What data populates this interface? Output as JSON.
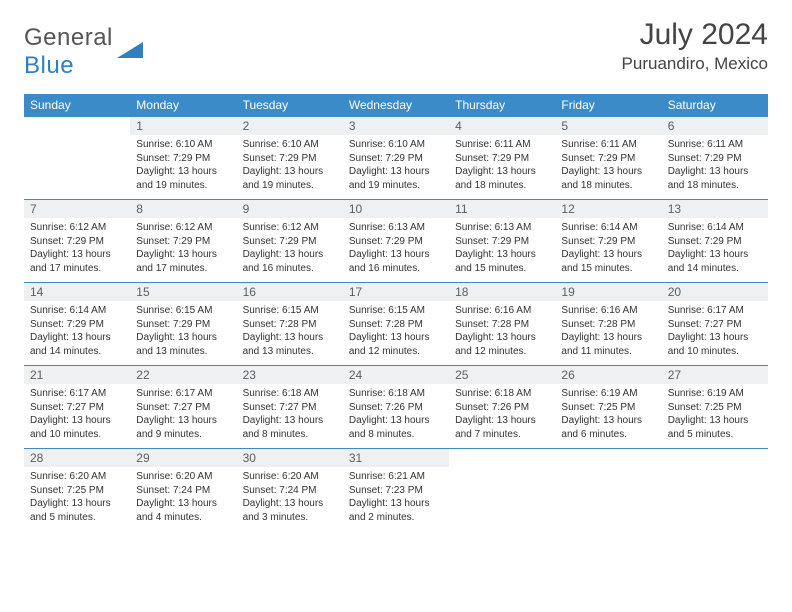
{
  "logo": {
    "general": "General",
    "blue": "Blue"
  },
  "title": "July 2024",
  "location": "Puruandiro, Mexico",
  "colors": {
    "header_bg": "#3b8bc9",
    "header_text": "#ffffff",
    "daynum_bg": "#eef0f2",
    "daynum_text": "#5b6066",
    "rule": "#3b8bc9",
    "logo_blue": "#2f7fc1"
  },
  "weekdays": [
    "Sunday",
    "Monday",
    "Tuesday",
    "Wednesday",
    "Thursday",
    "Friday",
    "Saturday"
  ],
  "grid": [
    [
      null,
      {
        "n": "1",
        "sr": "Sunrise: 6:10 AM",
        "ss": "Sunset: 7:29 PM",
        "d1": "Daylight: 13 hours",
        "d2": "and 19 minutes."
      },
      {
        "n": "2",
        "sr": "Sunrise: 6:10 AM",
        "ss": "Sunset: 7:29 PM",
        "d1": "Daylight: 13 hours",
        "d2": "and 19 minutes."
      },
      {
        "n": "3",
        "sr": "Sunrise: 6:10 AM",
        "ss": "Sunset: 7:29 PM",
        "d1": "Daylight: 13 hours",
        "d2": "and 19 minutes."
      },
      {
        "n": "4",
        "sr": "Sunrise: 6:11 AM",
        "ss": "Sunset: 7:29 PM",
        "d1": "Daylight: 13 hours",
        "d2": "and 18 minutes."
      },
      {
        "n": "5",
        "sr": "Sunrise: 6:11 AM",
        "ss": "Sunset: 7:29 PM",
        "d1": "Daylight: 13 hours",
        "d2": "and 18 minutes."
      },
      {
        "n": "6",
        "sr": "Sunrise: 6:11 AM",
        "ss": "Sunset: 7:29 PM",
        "d1": "Daylight: 13 hours",
        "d2": "and 18 minutes."
      }
    ],
    [
      {
        "n": "7",
        "sr": "Sunrise: 6:12 AM",
        "ss": "Sunset: 7:29 PM",
        "d1": "Daylight: 13 hours",
        "d2": "and 17 minutes."
      },
      {
        "n": "8",
        "sr": "Sunrise: 6:12 AM",
        "ss": "Sunset: 7:29 PM",
        "d1": "Daylight: 13 hours",
        "d2": "and 17 minutes."
      },
      {
        "n": "9",
        "sr": "Sunrise: 6:12 AM",
        "ss": "Sunset: 7:29 PM",
        "d1": "Daylight: 13 hours",
        "d2": "and 16 minutes."
      },
      {
        "n": "10",
        "sr": "Sunrise: 6:13 AM",
        "ss": "Sunset: 7:29 PM",
        "d1": "Daylight: 13 hours",
        "d2": "and 16 minutes."
      },
      {
        "n": "11",
        "sr": "Sunrise: 6:13 AM",
        "ss": "Sunset: 7:29 PM",
        "d1": "Daylight: 13 hours",
        "d2": "and 15 minutes."
      },
      {
        "n": "12",
        "sr": "Sunrise: 6:14 AM",
        "ss": "Sunset: 7:29 PM",
        "d1": "Daylight: 13 hours",
        "d2": "and 15 minutes."
      },
      {
        "n": "13",
        "sr": "Sunrise: 6:14 AM",
        "ss": "Sunset: 7:29 PM",
        "d1": "Daylight: 13 hours",
        "d2": "and 14 minutes."
      }
    ],
    [
      {
        "n": "14",
        "sr": "Sunrise: 6:14 AM",
        "ss": "Sunset: 7:29 PM",
        "d1": "Daylight: 13 hours",
        "d2": "and 14 minutes."
      },
      {
        "n": "15",
        "sr": "Sunrise: 6:15 AM",
        "ss": "Sunset: 7:29 PM",
        "d1": "Daylight: 13 hours",
        "d2": "and 13 minutes."
      },
      {
        "n": "16",
        "sr": "Sunrise: 6:15 AM",
        "ss": "Sunset: 7:28 PM",
        "d1": "Daylight: 13 hours",
        "d2": "and 13 minutes."
      },
      {
        "n": "17",
        "sr": "Sunrise: 6:15 AM",
        "ss": "Sunset: 7:28 PM",
        "d1": "Daylight: 13 hours",
        "d2": "and 12 minutes."
      },
      {
        "n": "18",
        "sr": "Sunrise: 6:16 AM",
        "ss": "Sunset: 7:28 PM",
        "d1": "Daylight: 13 hours",
        "d2": "and 12 minutes."
      },
      {
        "n": "19",
        "sr": "Sunrise: 6:16 AM",
        "ss": "Sunset: 7:28 PM",
        "d1": "Daylight: 13 hours",
        "d2": "and 11 minutes."
      },
      {
        "n": "20",
        "sr": "Sunrise: 6:17 AM",
        "ss": "Sunset: 7:27 PM",
        "d1": "Daylight: 13 hours",
        "d2": "and 10 minutes."
      }
    ],
    [
      {
        "n": "21",
        "sr": "Sunrise: 6:17 AM",
        "ss": "Sunset: 7:27 PM",
        "d1": "Daylight: 13 hours",
        "d2": "and 10 minutes."
      },
      {
        "n": "22",
        "sr": "Sunrise: 6:17 AM",
        "ss": "Sunset: 7:27 PM",
        "d1": "Daylight: 13 hours",
        "d2": "and 9 minutes."
      },
      {
        "n": "23",
        "sr": "Sunrise: 6:18 AM",
        "ss": "Sunset: 7:27 PM",
        "d1": "Daylight: 13 hours",
        "d2": "and 8 minutes."
      },
      {
        "n": "24",
        "sr": "Sunrise: 6:18 AM",
        "ss": "Sunset: 7:26 PM",
        "d1": "Daylight: 13 hours",
        "d2": "and 8 minutes."
      },
      {
        "n": "25",
        "sr": "Sunrise: 6:18 AM",
        "ss": "Sunset: 7:26 PM",
        "d1": "Daylight: 13 hours",
        "d2": "and 7 minutes."
      },
      {
        "n": "26",
        "sr": "Sunrise: 6:19 AM",
        "ss": "Sunset: 7:25 PM",
        "d1": "Daylight: 13 hours",
        "d2": "and 6 minutes."
      },
      {
        "n": "27",
        "sr": "Sunrise: 6:19 AM",
        "ss": "Sunset: 7:25 PM",
        "d1": "Daylight: 13 hours",
        "d2": "and 5 minutes."
      }
    ],
    [
      {
        "n": "28",
        "sr": "Sunrise: 6:20 AM",
        "ss": "Sunset: 7:25 PM",
        "d1": "Daylight: 13 hours",
        "d2": "and 5 minutes."
      },
      {
        "n": "29",
        "sr": "Sunrise: 6:20 AM",
        "ss": "Sunset: 7:24 PM",
        "d1": "Daylight: 13 hours",
        "d2": "and 4 minutes."
      },
      {
        "n": "30",
        "sr": "Sunrise: 6:20 AM",
        "ss": "Sunset: 7:24 PM",
        "d1": "Daylight: 13 hours",
        "d2": "and 3 minutes."
      },
      {
        "n": "31",
        "sr": "Sunrise: 6:21 AM",
        "ss": "Sunset: 7:23 PM",
        "d1": "Daylight: 13 hours",
        "d2": "and 2 minutes."
      },
      null,
      null,
      null
    ]
  ]
}
